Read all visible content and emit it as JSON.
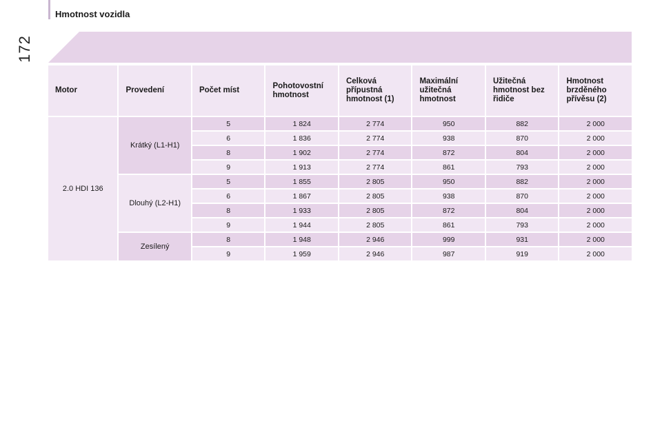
{
  "page": {
    "number": "172",
    "section_title": "Hmotnost vozidla"
  },
  "table": {
    "headers": [
      "Motor",
      "Provedení",
      "Počet míst",
      "Pohotovostní\nhmotnost",
      "Celková\npřípustná\nhmotnost (1)",
      "Maximální\nužitečná\nhmotnost",
      "Užitečná\nhmotnost bez\nřidiče",
      "Hmotnost\nbrzděného\npřívěsu (2)"
    ],
    "engine": "2.0 HDI 136",
    "groups": [
      {
        "variant": "Krátký (L1-H1)",
        "rows": [
          [
            "5",
            "1 824",
            "2 774",
            "950",
            "882",
            "2 000"
          ],
          [
            "6",
            "1 836",
            "2 774",
            "938",
            "870",
            "2 000"
          ],
          [
            "8",
            "1 902",
            "2 774",
            "872",
            "804",
            "2 000"
          ],
          [
            "9",
            "1 913",
            "2 774",
            "861",
            "793",
            "2 000"
          ]
        ]
      },
      {
        "variant": "Dlouhý (L2-H1)",
        "rows": [
          [
            "5",
            "1 855",
            "2 805",
            "950",
            "882",
            "2 000"
          ],
          [
            "6",
            "1 867",
            "2 805",
            "938",
            "870",
            "2 000"
          ],
          [
            "8",
            "1 933",
            "2 805",
            "872",
            "804",
            "2 000"
          ],
          [
            "9",
            "1 944",
            "2 805",
            "861",
            "793",
            "2 000"
          ]
        ]
      },
      {
        "variant": "Zesílený",
        "rows": [
          [
            "8",
            "1 948",
            "2 946",
            "999",
            "931",
            "2 000"
          ],
          [
            "9",
            "1 959",
            "2 946",
            "987",
            "919",
            "2 000"
          ]
        ]
      }
    ]
  },
  "colors": {
    "dark_band": "#e6d3e8",
    "light_band": "#f1e6f3",
    "accent_bar": "#c9b6d0"
  }
}
